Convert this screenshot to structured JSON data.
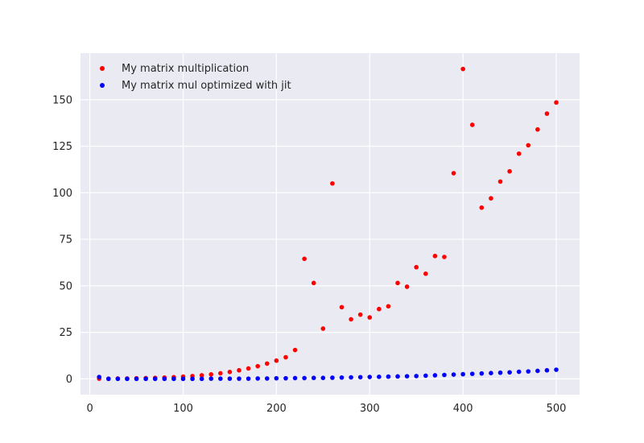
{
  "chart_data": {
    "type": "scatter",
    "title": "",
    "xlabel": "",
    "ylabel": "",
    "xlim": [
      -10,
      525
    ],
    "ylim": [
      -8.5,
      175
    ],
    "x_ticks": [
      0,
      100,
      200,
      300,
      400,
      500
    ],
    "y_ticks": [
      0,
      25,
      50,
      75,
      100,
      125,
      150
    ],
    "grid": true,
    "legend": "top-left",
    "series": [
      {
        "name": "My matrix multiplication",
        "color": "#ff0000",
        "x": [
          10,
          20,
          30,
          40,
          50,
          60,
          70,
          80,
          90,
          100,
          110,
          120,
          130,
          140,
          150,
          160,
          170,
          180,
          190,
          200,
          210,
          220,
          230,
          240,
          250,
          260,
          270,
          280,
          290,
          300,
          310,
          320,
          330,
          340,
          350,
          360,
          370,
          380,
          390,
          400,
          410,
          420,
          430,
          440,
          450,
          460,
          470,
          480,
          490,
          500
        ],
        "y": [
          0.1,
          0.1,
          0.2,
          0.2,
          0.3,
          0.4,
          0.5,
          0.7,
          0.9,
          1.2,
          1.5,
          1.9,
          2.4,
          3.0,
          3.7,
          4.6,
          5.6,
          6.8,
          8.2,
          9.8,
          11.6,
          15.5,
          64.5,
          51.5,
          27.0,
          105.0,
          38.5,
          32.0,
          34.5,
          33.0,
          37.5,
          39.0,
          51.5,
          49.5,
          60.0,
          56.5,
          66.0,
          65.5,
          110.5,
          166.5,
          136.5,
          92.0,
          97.0,
          106.0,
          111.5,
          121.0,
          125.5,
          134.0,
          142.5,
          148.5
        ]
      },
      {
        "name": "My matrix mul optimized with jit",
        "color": "#0000ff",
        "x": [
          10,
          20,
          30,
          40,
          50,
          60,
          70,
          80,
          90,
          100,
          110,
          120,
          130,
          140,
          150,
          160,
          170,
          180,
          190,
          200,
          210,
          220,
          230,
          240,
          250,
          260,
          270,
          280,
          290,
          300,
          310,
          320,
          330,
          340,
          350,
          360,
          370,
          380,
          390,
          400,
          410,
          420,
          430,
          440,
          450,
          460,
          470,
          480,
          490,
          500
        ],
        "y": [
          1.0,
          0.0,
          0.0,
          0.0,
          0.0,
          0.0,
          0.0,
          0.0,
          0.0,
          0.0,
          0.0,
          0.0,
          0.1,
          0.1,
          0.1,
          0.1,
          0.1,
          0.2,
          0.2,
          0.3,
          0.3,
          0.4,
          0.4,
          0.5,
          0.5,
          0.6,
          0.7,
          0.8,
          0.9,
          1.0,
          1.1,
          1.2,
          1.3,
          1.4,
          1.5,
          1.7,
          1.9,
          2.1,
          2.3,
          2.5,
          2.7,
          2.9,
          3.1,
          3.3,
          3.5,
          3.8,
          4.0,
          4.3,
          4.6,
          4.9
        ]
      }
    ]
  }
}
